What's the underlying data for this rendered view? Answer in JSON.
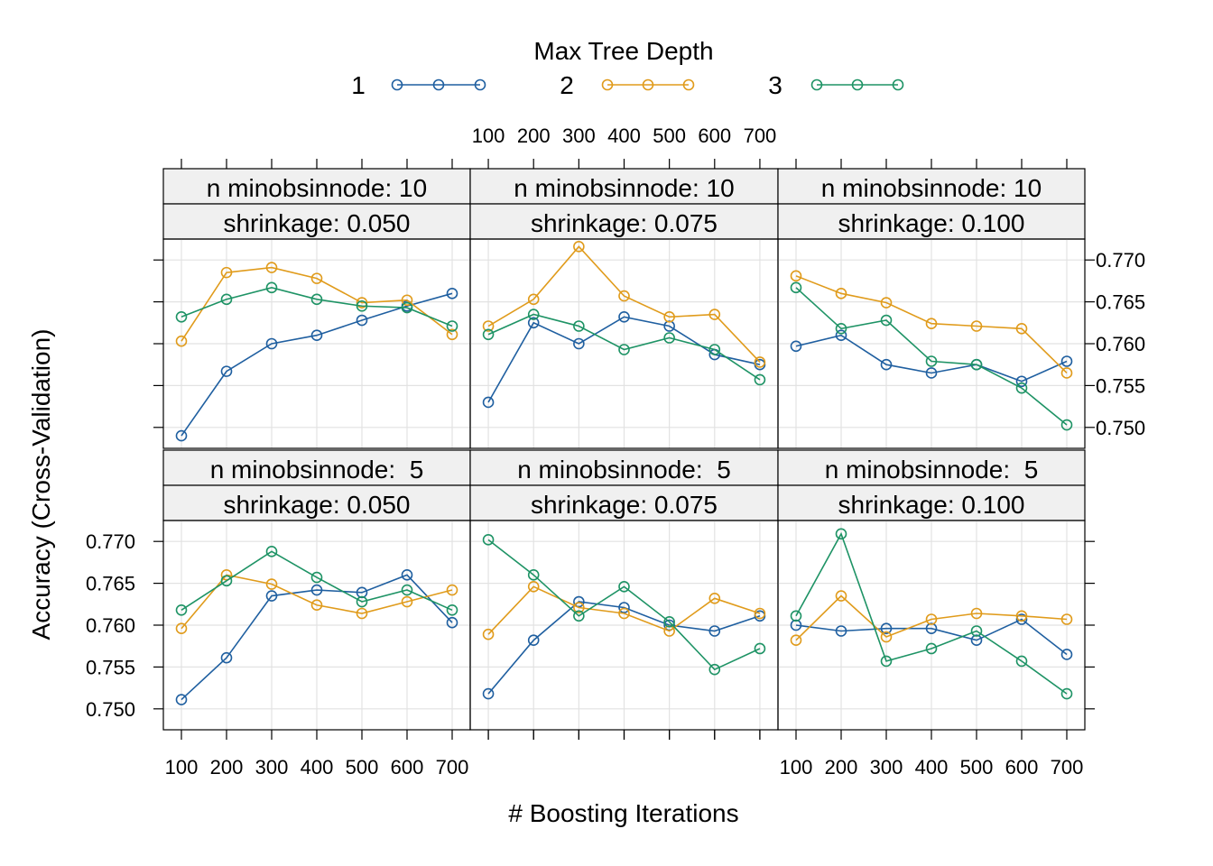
{
  "legend": {
    "title": "Max Tree Depth",
    "entries": [
      {
        "label": "1",
        "color": "#1f5fa0"
      },
      {
        "label": "2",
        "color": "#e09b1b"
      },
      {
        "label": "3",
        "color": "#1e9365"
      }
    ]
  },
  "axes": {
    "xlabel": "# Boosting Iterations",
    "ylabel": "Accuracy (Cross-Validation)",
    "x_ticks": [
      100,
      200,
      300,
      400,
      500,
      600,
      700
    ],
    "y_ticks": [
      0.75,
      0.755,
      0.76,
      0.765,
      0.77
    ],
    "y_tick_labels": [
      "0.750",
      "0.755",
      "0.760",
      "0.765",
      "0.770"
    ],
    "xlim": [
      60,
      740
    ],
    "ylim": [
      0.7475,
      0.7725
    ]
  },
  "chart_data": {
    "type": "line",
    "layout": "trellis 3 columns x 2 rows",
    "grid": true,
    "x": [
      100,
      200,
      300,
      400,
      500,
      600,
      700
    ],
    "panels": [
      {
        "strip_top": "n minobsinnode: 10",
        "strip_bottom": "shrinkage: 0.050",
        "series": [
          {
            "name": "1",
            "values": [
              0.749,
              0.7567,
              0.76,
              0.761,
              0.7628,
              0.7645,
              0.766
            ]
          },
          {
            "name": "2",
            "values": [
              0.7603,
              0.7685,
              0.7691,
              0.7678,
              0.7649,
              0.7652,
              0.7611
            ]
          },
          {
            "name": "3",
            "values": [
              0.7632,
              0.7653,
              0.7667,
              0.7653,
              0.7645,
              0.7643,
              0.7621
            ]
          }
        ]
      },
      {
        "strip_top": "n minobsinnode: 10",
        "strip_bottom": "shrinkage: 0.075",
        "series": [
          {
            "name": "1",
            "values": [
              0.753,
              0.7625,
              0.76,
              0.7632,
              0.7621,
              0.7587,
              0.7575
            ]
          },
          {
            "name": "2",
            "values": [
              0.7621,
              0.7653,
              0.7716,
              0.7657,
              0.7632,
              0.7635,
              0.7578
            ]
          },
          {
            "name": "3",
            "values": [
              0.7611,
              0.7635,
              0.7621,
              0.7593,
              0.7607,
              0.7593,
              0.7557
            ]
          }
        ]
      },
      {
        "strip_top": "n minobsinnode: 10",
        "strip_bottom": "shrinkage: 0.100",
        "series": [
          {
            "name": "1",
            "values": [
              0.7597,
              0.761,
              0.7575,
              0.7565,
              0.7575,
              0.7555,
              0.7579
            ]
          },
          {
            "name": "2",
            "values": [
              0.7681,
              0.766,
              0.7649,
              0.7624,
              0.7621,
              0.7618,
              0.7565
            ]
          },
          {
            "name": "3",
            "values": [
              0.7667,
              0.7618,
              0.7628,
              0.7579,
              0.7575,
              0.7547,
              0.7503
            ]
          }
        ]
      },
      {
        "strip_top": "n minobsinnode:  5",
        "strip_bottom": "shrinkage: 0.050",
        "series": [
          {
            "name": "1",
            "values": [
              0.7511,
              0.7561,
              0.7635,
              0.7642,
              0.7639,
              0.766,
              0.7603
            ]
          },
          {
            "name": "2",
            "values": [
              0.7596,
              0.766,
              0.7649,
              0.7624,
              0.7614,
              0.7628,
              0.7642
            ]
          },
          {
            "name": "3",
            "values": [
              0.7618,
              0.7653,
              0.7688,
              0.7657,
              0.7628,
              0.7642,
              0.7618
            ]
          }
        ]
      },
      {
        "strip_top": "n minobsinnode:  5",
        "strip_bottom": "shrinkage: 0.075",
        "series": [
          {
            "name": "1",
            "values": [
              0.7518,
              0.7582,
              0.7628,
              0.7621,
              0.76,
              0.7593,
              0.7611
            ]
          },
          {
            "name": "2",
            "values": [
              0.7589,
              0.7646,
              0.7621,
              0.7614,
              0.7593,
              0.7632,
              0.7614
            ]
          },
          {
            "name": "3",
            "values": [
              0.7702,
              0.766,
              0.7611,
              0.7646,
              0.7604,
              0.7547,
              0.7572
            ]
          }
        ]
      },
      {
        "strip_top": "n minobsinnode:  5",
        "strip_bottom": "shrinkage: 0.100",
        "series": [
          {
            "name": "1",
            "values": [
              0.76,
              0.7593,
              0.7596,
              0.7596,
              0.7582,
              0.7607,
              0.7565
            ]
          },
          {
            "name": "2",
            "values": [
              0.7582,
              0.7635,
              0.7586,
              0.7607,
              0.7614,
              0.7611,
              0.7607
            ]
          },
          {
            "name": "3",
            "values": [
              0.7611,
              0.7709,
              0.7557,
              0.7572,
              0.7593,
              0.7557,
              0.7518
            ]
          }
        ]
      }
    ]
  }
}
